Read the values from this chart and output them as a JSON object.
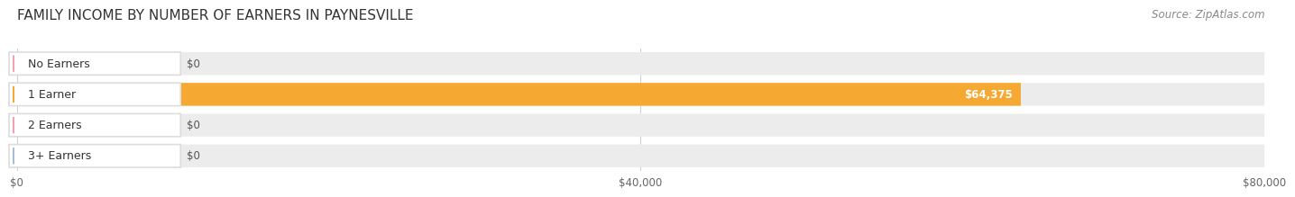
{
  "title": "FAMILY INCOME BY NUMBER OF EARNERS IN PAYNESVILLE",
  "source": "Source: ZipAtlas.com",
  "categories": [
    "No Earners",
    "1 Earner",
    "2 Earners",
    "3+ Earners"
  ],
  "values": [
    0,
    64375,
    0,
    0
  ],
  "bar_colors": [
    "#f4a0b0",
    "#f5a832",
    "#f4a0b0",
    "#a8bcd8"
  ],
  "label_dot_colors": [
    "#f4a0b0",
    "#f5a832",
    "#f4a0b0",
    "#a8bcd8"
  ],
  "bar_bg_color": "#ececec",
  "xlim_max": 80000,
  "xticks": [
    0,
    40000,
    80000
  ],
  "xtick_labels": [
    "$0",
    "$40,000",
    "$80,000"
  ],
  "value_labels": [
    "$0",
    "$64,375",
    "$0",
    "$0"
  ],
  "title_fontsize": 11,
  "source_fontsize": 8.5,
  "tick_fontsize": 8.5,
  "bar_label_fontsize": 8.5,
  "cat_label_fontsize": 9
}
